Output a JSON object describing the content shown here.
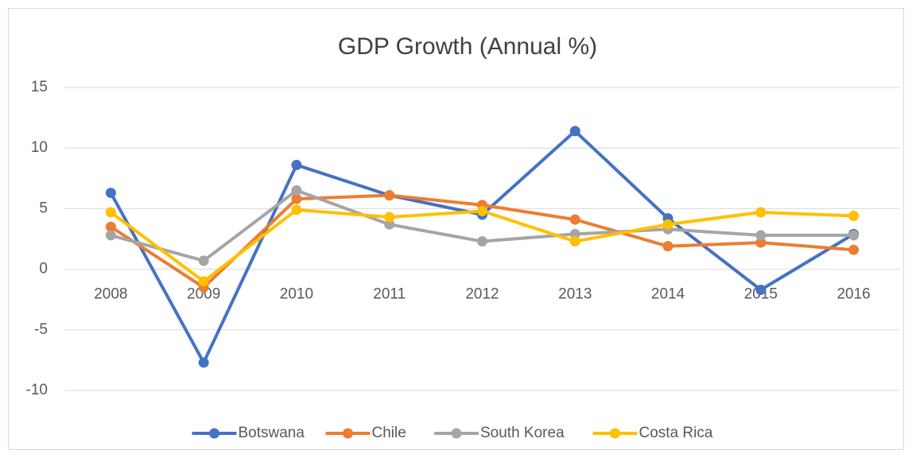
{
  "chart_data": {
    "type": "line",
    "title": "GDP Growth (Annual %)",
    "categories": [
      "2008",
      "2009",
      "2010",
      "2011",
      "2012",
      "2013",
      "2014",
      "2015",
      "2016"
    ],
    "series": [
      {
        "name": "Botswana",
        "color": "#4472c4",
        "values": [
          6.3,
          -7.7,
          8.6,
          6.1,
          4.5,
          11.4,
          4.2,
          -1.7,
          2.9
        ]
      },
      {
        "name": "Chile",
        "color": "#ed7d31",
        "values": [
          3.5,
          -1.5,
          5.8,
          6.1,
          5.3,
          4.1,
          1.9,
          2.2,
          1.6
        ]
      },
      {
        "name": "South Korea",
        "color": "#a5a5a5",
        "values": [
          2.8,
          0.7,
          6.5,
          3.7,
          2.3,
          2.9,
          3.3,
          2.8,
          2.8
        ]
      },
      {
        "name": "Costa Rica",
        "color": "#ffc000",
        "values": [
          4.7,
          -1.0,
          4.9,
          4.3,
          4.8,
          2.3,
          3.7,
          4.7,
          4.4
        ]
      }
    ],
    "ylim": [
      -10,
      15
    ],
    "yticks": [
      -10,
      -5,
      0,
      5,
      10,
      15
    ],
    "grid": true,
    "legend": "bottom"
  }
}
